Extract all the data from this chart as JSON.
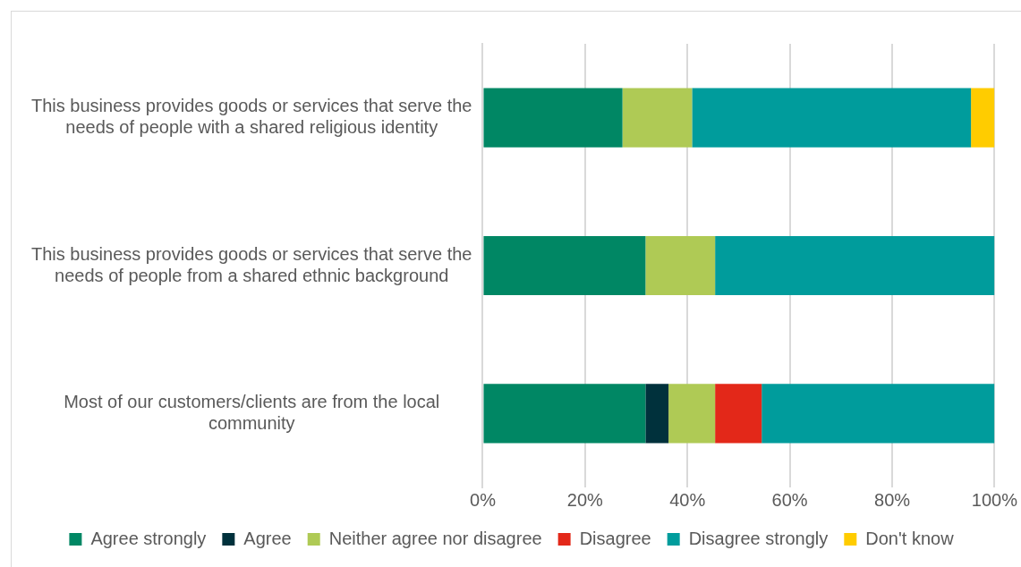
{
  "chart_data": {
    "type": "bar",
    "orientation": "horizontal",
    "stacked": true,
    "categories": [
      "This business provides goods or services that serve the needs of people with a shared religious identity",
      "This business provides goods or services that serve the needs of people from a shared ethnic background",
      "Most of our customers/clients are from the local community"
    ],
    "series": [
      {
        "name": "Agree strongly",
        "color": "#008764",
        "values": [
          27.3,
          31.8,
          31.8
        ]
      },
      {
        "name": "Agree",
        "color": "#00313c",
        "values": [
          null,
          null,
          4.5
        ]
      },
      {
        "name": "Neither agree nor disagree",
        "color": "#afca55",
        "values": [
          13.6,
          13.6,
          9.1
        ]
      },
      {
        "name": "Disagree",
        "color": "#e32819",
        "values": [
          null,
          null,
          9.1
        ]
      },
      {
        "name": "Disagree strongly",
        "color": "#009c9c",
        "values": [
          54.5,
          54.6,
          45.5
        ]
      },
      {
        "name": "Don't know",
        "color": "#ffcc00",
        "values": [
          4.6,
          null,
          null
        ]
      }
    ],
    "xlim": [
      0,
      100
    ],
    "xticks": [
      {
        "value": 0,
        "label": "0%"
      },
      {
        "value": 20,
        "label": "20%"
      },
      {
        "value": 40,
        "label": "40%"
      },
      {
        "value": 60,
        "label": "60%"
      },
      {
        "value": 80,
        "label": "80%"
      },
      {
        "value": 100,
        "label": "100%"
      }
    ],
    "grid": "x",
    "legend": "bottom"
  }
}
